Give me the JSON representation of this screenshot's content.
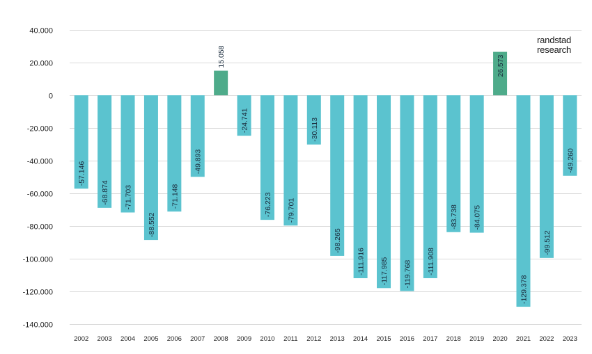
{
  "brand": {
    "line1": "randstad",
    "line2": "research"
  },
  "chart_data": {
    "type": "bar",
    "title": "",
    "xlabel": "",
    "ylabel": "",
    "ylim": [
      -140000,
      40000
    ],
    "yticks": [
      40000,
      20000,
      0,
      -20000,
      -40000,
      -60000,
      -80000,
      -100000,
      -120000,
      -140000
    ],
    "ytick_labels": [
      "40.000",
      "20.000",
      "0",
      "-20.000",
      "-40.000",
      "-60.000",
      "-80.000",
      "-100.000",
      "-120.000",
      "-140.000"
    ],
    "grid": true,
    "legend": "none",
    "categories": [
      "2002",
      "2003",
      "2004",
      "2005",
      "2006",
      "2007",
      "2008",
      "2009",
      "2010",
      "2011",
      "2012",
      "2013",
      "2014",
      "2015",
      "2016",
      "2017",
      "2018",
      "2019",
      "2020",
      "2021",
      "2022",
      "2023"
    ],
    "values": [
      -57146,
      -68874,
      -71703,
      -88552,
      -71148,
      -49893,
      15058,
      -24741,
      -76223,
      -79701,
      -30113,
      -98265,
      -111916,
      -117985,
      -119768,
      -111908,
      -83738,
      -84075,
      26573,
      -129378,
      -99512,
      -49260
    ],
    "data_labels": [
      "-57.146",
      "-68.874",
      "-71.703",
      "-88.552",
      "-71.148",
      "-49.893",
      "15.058",
      "-24.741",
      "-76.223",
      "-79.701",
      "-30.113",
      "-98.265",
      "-111.916",
      "-117.985",
      "-119.768",
      "-111.908",
      "-83.738",
      "-84.075",
      "26.573",
      "-129.378",
      "-99.512",
      "-49.260"
    ],
    "colors": {
      "negative": "#5bc3cf",
      "positive": "#4eab8a"
    }
  }
}
